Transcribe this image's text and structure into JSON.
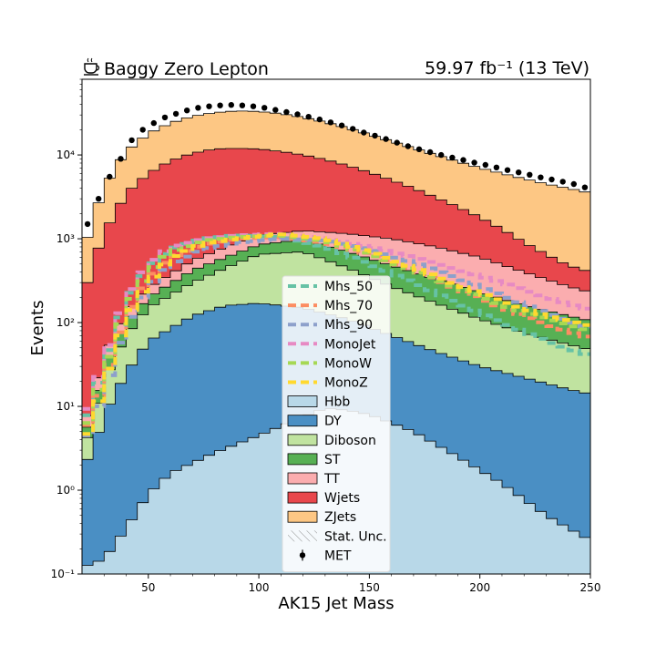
{
  "chart_data": {
    "type": "histogram",
    "title_left": "Baggy Zero Lepton",
    "title_left_icon": "coffee-icon",
    "title_right": "59.97 fb⁻¹ (13 TeV)",
    "xlabel": "AK15 Jet Mass",
    "ylabel": "Events",
    "xlim": [
      20,
      250
    ],
    "ylim": [
      0.1,
      80000
    ],
    "yscale": "log",
    "x_ticks": [
      50,
      100,
      150,
      200,
      250
    ],
    "y_ticks": [
      "10⁻¹",
      "10⁰",
      "10¹",
      "10²",
      "10³",
      "10⁴"
    ],
    "legend_position": "center",
    "legend": [
      {
        "label": "Mhs_50",
        "style": "dashed",
        "color": "#66c2a5"
      },
      {
        "label": "Mhs_70",
        "style": "dashed",
        "color": "#fc8d62"
      },
      {
        "label": "Mhs_90",
        "style": "dashed",
        "color": "#8da0cb"
      },
      {
        "label": "MonoJet",
        "style": "dashed",
        "color": "#e78ac3"
      },
      {
        "label": "MonoW",
        "style": "dashed",
        "color": "#a6d854"
      },
      {
        "label": "MonoZ",
        "style": "dashed",
        "color": "#ffd92f"
      },
      {
        "label": "Hbb",
        "style": "fill",
        "color": "#b8d8e8"
      },
      {
        "label": "DY",
        "style": "fill",
        "color": "#4a8fc4"
      },
      {
        "label": "Diboson",
        "style": "fill",
        "color": "#c0e3a0"
      },
      {
        "label": "ST",
        "style": "fill",
        "color": "#57b054"
      },
      {
        "label": "TT",
        "style": "fill",
        "color": "#fbadaf"
      },
      {
        "label": "Wjets",
        "style": "fill",
        "color": "#e8474c"
      },
      {
        "label": "ZJets",
        "style": "fill",
        "color": "#fdc784"
      },
      {
        "label": "Stat. Unc.",
        "style": "hatch",
        "color": "#888888"
      },
      {
        "label": "MET",
        "style": "errorbar",
        "color": "#000000"
      }
    ],
    "stack_order": [
      "Hbb",
      "DY",
      "Diboson",
      "ST",
      "TT",
      "Wjets",
      "ZJets"
    ],
    "stack_colors": [
      "#b8d8e8",
      "#4a8fc4",
      "#c0e3a0",
      "#57b054",
      "#fbadaf",
      "#e8474c",
      "#fdc784"
    ],
    "cumulative_curves": [
      {
        "name": "Hbb",
        "points": [
          [
            20,
            0.12
          ],
          [
            30,
            0.15
          ],
          [
            40,
            0.35
          ],
          [
            50,
            0.9
          ],
          [
            60,
            1.6
          ],
          [
            80,
            2.8
          ],
          [
            100,
            4.5
          ],
          [
            120,
            7.5
          ],
          [
            130,
            9.5
          ],
          [
            140,
            9.0
          ],
          [
            150,
            8.0
          ],
          [
            170,
            5.0
          ],
          [
            190,
            2.5
          ],
          [
            210,
            1.2
          ],
          [
            230,
            0.5
          ],
          [
            250,
            0.25
          ]
        ]
      },
      {
        "name": "DY",
        "points": [
          [
            20,
            1.8
          ],
          [
            25,
            3
          ],
          [
            30,
            8
          ],
          [
            40,
            25
          ],
          [
            50,
            60
          ],
          [
            70,
            120
          ],
          [
            85,
            160
          ],
          [
            100,
            170
          ],
          [
            120,
            150
          ],
          [
            140,
            110
          ],
          [
            160,
            70
          ],
          [
            180,
            45
          ],
          [
            200,
            30
          ],
          [
            220,
            22
          ],
          [
            240,
            16
          ],
          [
            250,
            14
          ]
        ]
      },
      {
        "name": "Diboson",
        "points": [
          [
            20,
            3
          ],
          [
            25,
            6
          ],
          [
            30,
            20
          ],
          [
            40,
            70
          ],
          [
            50,
            150
          ],
          [
            70,
            300
          ],
          [
            85,
            450
          ],
          [
            100,
            650
          ],
          [
            120,
            700
          ],
          [
            140,
            450
          ],
          [
            160,
            270
          ],
          [
            180,
            170
          ],
          [
            200,
            110
          ],
          [
            220,
            75
          ],
          [
            240,
            55
          ],
          [
            250,
            47
          ]
        ]
      },
      {
        "name": "ST",
        "points": [
          [
            20,
            4
          ],
          [
            25,
            8
          ],
          [
            30,
            30
          ],
          [
            40,
            100
          ],
          [
            50,
            200
          ],
          [
            70,
            420
          ],
          [
            85,
            600
          ],
          [
            100,
            850
          ],
          [
            120,
            980
          ],
          [
            140,
            700
          ],
          [
            160,
            480
          ],
          [
            180,
            330
          ],
          [
            200,
            230
          ],
          [
            220,
            160
          ],
          [
            240,
            120
          ],
          [
            250,
            105
          ]
        ]
      },
      {
        "name": "TT",
        "points": [
          [
            20,
            5
          ],
          [
            25,
            12
          ],
          [
            30,
            40
          ],
          [
            40,
            130
          ],
          [
            50,
            260
          ],
          [
            70,
            550
          ],
          [
            85,
            800
          ],
          [
            100,
            1100
          ],
          [
            120,
            1250
          ],
          [
            140,
            1150
          ],
          [
            160,
            1000
          ],
          [
            180,
            800
          ],
          [
            200,
            600
          ],
          [
            220,
            400
          ],
          [
            240,
            270
          ],
          [
            250,
            230
          ]
        ]
      },
      {
        "name": "Wjets",
        "points": [
          [
            20,
            180
          ],
          [
            25,
            500
          ],
          [
            30,
            1200
          ],
          [
            35,
            2000
          ],
          [
            40,
            3500
          ],
          [
            50,
            6000
          ],
          [
            60,
            8500
          ],
          [
            70,
            10500
          ],
          [
            80,
            11800
          ],
          [
            90,
            12000
          ],
          [
            100,
            11800
          ],
          [
            110,
            11000
          ],
          [
            120,
            10000
          ],
          [
            130,
            8800
          ],
          [
            140,
            7500
          ],
          [
            150,
            6200
          ],
          [
            160,
            5000
          ],
          [
            170,
            4000
          ],
          [
            180,
            3100
          ],
          [
            190,
            2400
          ],
          [
            200,
            1800
          ],
          [
            210,
            1300
          ],
          [
            220,
            900
          ],
          [
            230,
            650
          ],
          [
            240,
            480
          ],
          [
            250,
            400
          ]
        ]
      },
      {
        "name": "ZJets",
        "points": [
          [
            20,
            600
          ],
          [
            25,
            1800
          ],
          [
            30,
            4000
          ],
          [
            35,
            7000
          ],
          [
            40,
            11000
          ],
          [
            50,
            18000
          ],
          [
            60,
            24000
          ],
          [
            70,
            29000
          ],
          [
            80,
            32000
          ],
          [
            90,
            33500
          ],
          [
            100,
            33000
          ],
          [
            110,
            31000
          ],
          [
            120,
            28000
          ],
          [
            130,
            24500
          ],
          [
            140,
            21000
          ],
          [
            150,
            17500
          ],
          [
            160,
            14500
          ],
          [
            170,
            12000
          ],
          [
            180,
            10000
          ],
          [
            190,
            8300
          ],
          [
            200,
            7000
          ],
          [
            210,
            6000
          ],
          [
            220,
            5200
          ],
          [
            230,
            4500
          ],
          [
            240,
            4000
          ],
          [
            250,
            3500
          ]
        ]
      }
    ],
    "signals": [
      {
        "name": "Mhs_50",
        "color": "#66c2a5",
        "points": [
          [
            20,
            5
          ],
          [
            30,
            30
          ],
          [
            40,
            180
          ],
          [
            50,
            450
          ],
          [
            60,
            750
          ],
          [
            75,
            1000
          ],
          [
            90,
            1100
          ],
          [
            110,
            1050
          ],
          [
            130,
            800
          ],
          [
            150,
            500
          ],
          [
            170,
            300
          ],
          [
            190,
            170
          ],
          [
            210,
            100
          ],
          [
            230,
            60
          ],
          [
            250,
            40
          ]
        ]
      },
      {
        "name": "Mhs_70",
        "color": "#fc8d62",
        "points": [
          [
            20,
            4
          ],
          [
            30,
            20
          ],
          [
            40,
            120
          ],
          [
            50,
            330
          ],
          [
            60,
            600
          ],
          [
            75,
            850
          ],
          [
            90,
            1000
          ],
          [
            110,
            1050
          ],
          [
            130,
            900
          ],
          [
            150,
            650
          ],
          [
            170,
            420
          ],
          [
            190,
            250
          ],
          [
            210,
            150
          ],
          [
            230,
            95
          ],
          [
            250,
            65
          ]
        ]
      },
      {
        "name": "Mhs_90",
        "color": "#8da0cb",
        "points": [
          [
            20,
            3
          ],
          [
            30,
            15
          ],
          [
            40,
            90
          ],
          [
            50,
            260
          ],
          [
            60,
            500
          ],
          [
            75,
            750
          ],
          [
            90,
            900
          ],
          [
            110,
            1000
          ],
          [
            130,
            950
          ],
          [
            150,
            750
          ],
          [
            170,
            520
          ],
          [
            190,
            340
          ],
          [
            210,
            210
          ],
          [
            230,
            130
          ],
          [
            250,
            85
          ]
        ]
      },
      {
        "name": "MonoJet",
        "color": "#e78ac3",
        "points": [
          [
            20,
            6
          ],
          [
            30,
            35
          ],
          [
            40,
            200
          ],
          [
            50,
            500
          ],
          [
            60,
            800
          ],
          [
            75,
            1000
          ],
          [
            90,
            1100
          ],
          [
            110,
            1150
          ],
          [
            130,
            1000
          ],
          [
            150,
            800
          ],
          [
            170,
            600
          ],
          [
            190,
            430
          ],
          [
            210,
            300
          ],
          [
            230,
            200
          ],
          [
            250,
            140
          ]
        ]
      },
      {
        "name": "MonoW",
        "color": "#a6d854",
        "points": [
          [
            20,
            4
          ],
          [
            30,
            25
          ],
          [
            40,
            150
          ],
          [
            50,
            400
          ],
          [
            60,
            700
          ],
          [
            75,
            950
          ],
          [
            90,
            1050
          ],
          [
            110,
            1100
          ],
          [
            130,
            950
          ],
          [
            150,
            650
          ],
          [
            170,
            420
          ],
          [
            190,
            260
          ],
          [
            210,
            160
          ],
          [
            230,
            110
          ],
          [
            250,
            80
          ]
        ]
      },
      {
        "name": "MonoZ",
        "color": "#ffd92f",
        "points": [
          [
            20,
            3
          ],
          [
            30,
            18
          ],
          [
            40,
            110
          ],
          [
            50,
            300
          ],
          [
            60,
            580
          ],
          [
            75,
            880
          ],
          [
            90,
            1000
          ],
          [
            110,
            1150
          ],
          [
            130,
            1000
          ],
          [
            150,
            700
          ],
          [
            170,
            450
          ],
          [
            190,
            280
          ],
          [
            210,
            180
          ],
          [
            230,
            120
          ],
          [
            250,
            90
          ]
        ]
      }
    ],
    "data_points": {
      "name": "MET",
      "x": [
        22.5,
        27.5,
        32.5,
        37.5,
        42.5,
        47.5,
        52.5,
        57.5,
        62.5,
        67.5,
        72.5,
        77.5,
        82.5,
        87.5,
        92.5,
        97.5,
        102.5,
        107.5,
        112.5,
        117.5,
        122.5,
        127.5,
        132.5,
        137.5,
        142.5,
        147.5,
        152.5,
        157.5,
        162.5,
        167.5,
        172.5,
        177.5,
        182.5,
        187.5,
        192.5,
        197.5,
        202.5,
        207.5,
        212.5,
        217.5,
        222.5,
        227.5,
        232.5,
        237.5,
        242.5,
        247.5
      ],
      "y": [
        1500,
        3000,
        5500,
        9000,
        15000,
        20000,
        24000,
        28000,
        31000,
        34000,
        36500,
        38000,
        39000,
        39500,
        39000,
        38000,
        36500,
        34500,
        32500,
        30500,
        28500,
        26500,
        24500,
        22500,
        20500,
        18500,
        17000,
        15500,
        14000,
        12700,
        11700,
        10800,
        10000,
        9300,
        8700,
        8100,
        7600,
        7100,
        6600,
        6200,
        5800,
        5400,
        5100,
        4800,
        4500,
        4100
      ]
    }
  }
}
